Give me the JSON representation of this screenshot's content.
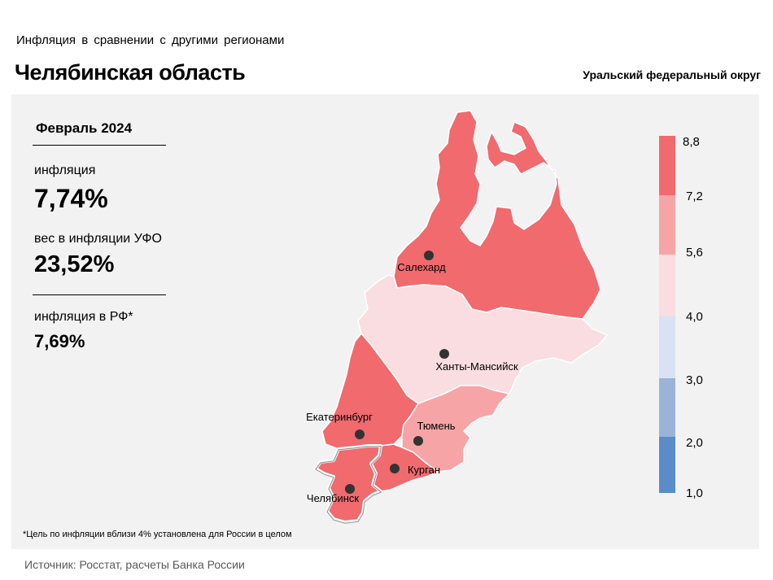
{
  "header": {
    "subtitle": "Инфляция  в сравнении  с другими  регионами",
    "title": "Челябинская область",
    "district": "Уральский федеральный округ"
  },
  "panel": {
    "period": "Февраль 2024",
    "inflation_label": "инфляция",
    "inflation_value": "7,74%",
    "weight_label": "вес в инфляции  УФО",
    "weight_value": "23,52%",
    "rf_label": "инфляция  в РФ*",
    "rf_value": "7,69%"
  },
  "note": "*Цель по инфляции вблизи 4% установлена для России в целом",
  "source": "Источник: Росстат, расчеты Банка России",
  "legend": {
    "ticks": [
      "8,8",
      "7,2",
      "5,6",
      "4,0",
      "3,0",
      "2,0",
      "1,0"
    ],
    "bands": [
      {
        "from": 7.2,
        "to": 8.8,
        "color": "#f06a6e"
      },
      {
        "from": 5.6,
        "to": 7.2,
        "color": "#f7a4a6"
      },
      {
        "from": 4.0,
        "to": 5.6,
        "color": "#fadde0"
      },
      {
        "from": 3.0,
        "to": 4.0,
        "color": "#d9e2f3"
      },
      {
        "from": 2.0,
        "to": 3.0,
        "color": "#9ab3d8"
      },
      {
        "from": 1.0,
        "to": 2.0,
        "color": "#5b8bc8"
      }
    ]
  },
  "regions": [
    {
      "id": "yamal",
      "city": "Салехард",
      "color": "#f06a6e"
    },
    {
      "id": "khmao",
      "city": "Ханты-Мансийск",
      "color": "#fadde0"
    },
    {
      "id": "sverdlovsk",
      "city": "Екатеринбург",
      "color": "#f06a6e"
    },
    {
      "id": "tyumen",
      "city": "Тюмень",
      "color": "#f7a4a6"
    },
    {
      "id": "kurgan",
      "city": "Курган",
      "color": "#f06a6e"
    },
    {
      "id": "chelyabinsk",
      "city": "Челябинск",
      "color": "#f06a6e"
    }
  ]
}
